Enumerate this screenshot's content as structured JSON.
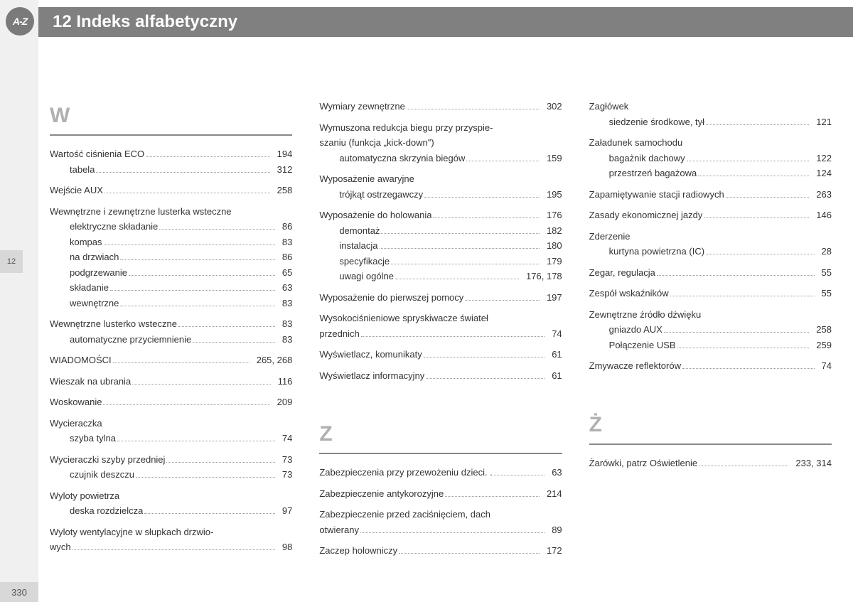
{
  "header": {
    "title": "12 Indeks alfabetyczny",
    "icon": "A-Z",
    "tab": "12",
    "pagenum": "330"
  },
  "col1": {
    "letter": "W",
    "groups": [
      {
        "entries": [
          {
            "label": "Wartość ciśnienia ECO",
            "page": "194"
          },
          {
            "label": "tabela",
            "page": "312",
            "sub": true
          }
        ]
      },
      {
        "entries": [
          {
            "label": "Wejście AUX",
            "page": "258"
          }
        ]
      },
      {
        "entries": [
          {
            "label": "Wewnętrzne i zewnętrzne lusterka wsteczne",
            "nopage": true
          },
          {
            "label": "elektryczne składanie",
            "page": "86",
            "sub": true
          },
          {
            "label": "kompas",
            "page": "83",
            "sub": true
          },
          {
            "label": "na drzwiach",
            "page": "86",
            "sub": true
          },
          {
            "label": "podgrzewanie",
            "page": "65",
            "sub": true
          },
          {
            "label": "składanie",
            "page": "63",
            "sub": true
          },
          {
            "label": "wewnętrzne",
            "page": "83",
            "sub": true
          }
        ]
      },
      {
        "entries": [
          {
            "label": "Wewnętrzne lusterko wsteczne",
            "page": "83"
          },
          {
            "label": "automatyczne przyciemnienie",
            "page": "83",
            "sub": true
          }
        ]
      },
      {
        "entries": [
          {
            "label": "WIADOMOŚCI",
            "page": "265, 268"
          }
        ]
      },
      {
        "entries": [
          {
            "label": "Wieszak na ubrania",
            "page": "116"
          }
        ]
      },
      {
        "entries": [
          {
            "label": "Woskowanie",
            "page": "209"
          }
        ]
      },
      {
        "entries": [
          {
            "label": "Wycieraczka",
            "nopage": true
          },
          {
            "label": "szyba tylna",
            "page": "74",
            "sub": true
          }
        ]
      },
      {
        "entries": [
          {
            "label": "Wycieraczki szyby przedniej",
            "page": "73"
          },
          {
            "label": "czujnik deszczu",
            "page": "73",
            "sub": true
          }
        ]
      },
      {
        "entries": [
          {
            "label": "Wyloty powietrza",
            "nopage": true
          },
          {
            "label": "deska rozdzielcza",
            "page": "97",
            "sub": true
          }
        ]
      },
      {
        "entries": [
          {
            "label": "Wyloty wentylacyjne w słupkach drzwio-",
            "nopage": true
          },
          {
            "label": "wych",
            "page": "98"
          }
        ]
      }
    ]
  },
  "col2": {
    "groups1": [
      {
        "entries": [
          {
            "label": "Wymiary zewnętrzne",
            "page": "302"
          }
        ]
      },
      {
        "entries": [
          {
            "label": "Wymuszona redukcja biegu przy przyspie-",
            "nopage": true
          },
          {
            "label": "szaniu (funkcja „kick-down\")",
            "nopage": true
          },
          {
            "label": "automatyczna skrzynia biegów",
            "page": "159",
            "sub": true
          }
        ]
      },
      {
        "entries": [
          {
            "label": "Wyposażenie awaryjne",
            "nopage": true
          },
          {
            "label": "trójkąt ostrzegawczy",
            "page": "195",
            "sub": true
          }
        ]
      },
      {
        "entries": [
          {
            "label": "Wyposażenie do holowania",
            "page": "176"
          },
          {
            "label": "demontaż",
            "page": "182",
            "sub": true
          },
          {
            "label": "instalacja",
            "page": "180",
            "sub": true
          },
          {
            "label": "specyfikacje",
            "page": "179",
            "sub": true
          },
          {
            "label": "uwagi ogólne",
            "page": "176, 178",
            "sub": true
          }
        ]
      },
      {
        "entries": [
          {
            "label": "Wyposażenie do pierwszej pomocy",
            "page": "197"
          }
        ]
      },
      {
        "entries": [
          {
            "label": "Wysokociśnieniowe spryskiwacze świateł",
            "nopage": true
          },
          {
            "label": "przednich",
            "page": "74"
          }
        ]
      },
      {
        "entries": [
          {
            "label": "Wyświetlacz, komunikaty",
            "page": "61"
          }
        ]
      },
      {
        "entries": [
          {
            "label": "Wyświetlacz informacyjny",
            "page": "61"
          }
        ]
      }
    ],
    "letter": "Z",
    "groups2": [
      {
        "entries": [
          {
            "label": "Zabezpieczenia przy przewożeniu dzieci. .",
            "page": "63"
          }
        ]
      },
      {
        "entries": [
          {
            "label": "Zabezpieczenie antykorozyjne",
            "page": "214"
          }
        ]
      },
      {
        "entries": [
          {
            "label": "Zabezpieczenie przed zaciśnięciem, dach",
            "nopage": true
          },
          {
            "label": "otwierany",
            "page": "89"
          }
        ]
      },
      {
        "entries": [
          {
            "label": "Zaczep holowniczy",
            "page": "172"
          }
        ]
      }
    ]
  },
  "col3": {
    "groups1": [
      {
        "entries": [
          {
            "label": "Zagłówek",
            "nopage": true
          },
          {
            "label": "siedzenie środkowe, tył",
            "page": "121",
            "sub": true
          }
        ]
      },
      {
        "entries": [
          {
            "label": "Załadunek samochodu",
            "nopage": true
          },
          {
            "label": "bagażnik dachowy",
            "page": "122",
            "sub": true
          },
          {
            "label": "przestrzeń bagażowa",
            "page": "124",
            "sub": true
          }
        ]
      },
      {
        "entries": [
          {
            "label": "Zapamiętywanie stacji radiowych",
            "page": "263"
          }
        ]
      },
      {
        "entries": [
          {
            "label": "Zasady ekonomicznej jazdy",
            "page": "146"
          }
        ]
      },
      {
        "entries": [
          {
            "label": "Zderzenie",
            "nopage": true
          },
          {
            "label": "kurtyna powietrzna (IC)",
            "page": "28",
            "sub": true
          }
        ]
      },
      {
        "entries": [
          {
            "label": "Zegar, regulacja",
            "page": "55"
          }
        ]
      },
      {
        "entries": [
          {
            "label": "Zespół wskaźników",
            "page": "55"
          }
        ]
      },
      {
        "entries": [
          {
            "label": "Zewnętrzne źródło dźwięku",
            "nopage": true
          },
          {
            "label": "gniazdo AUX",
            "page": "258",
            "sub": true
          },
          {
            "label": "Połączenie USB",
            "page": "259",
            "sub": true
          }
        ]
      },
      {
        "entries": [
          {
            "label": "Zmywacze reflektorów",
            "page": "74"
          }
        ]
      }
    ],
    "letter": "Ż",
    "groups2": [
      {
        "entries": [
          {
            "label": "Żarówki, patrz Oświetlenie",
            "page": "233, 314"
          }
        ]
      }
    ]
  }
}
